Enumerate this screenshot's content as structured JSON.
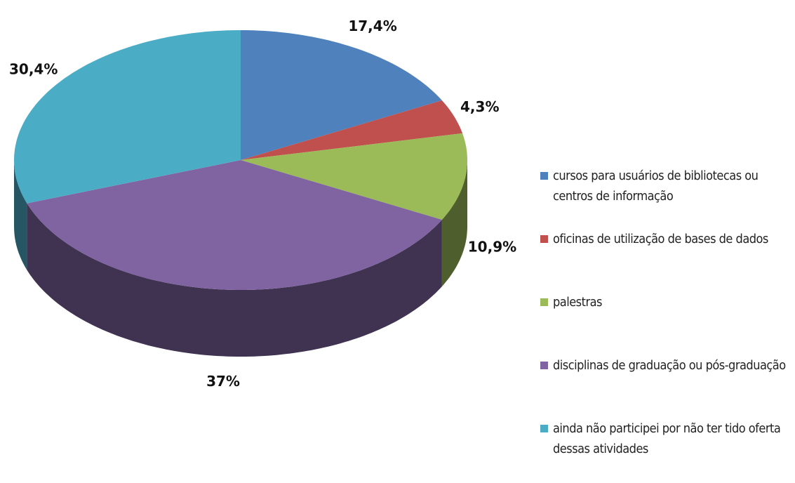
{
  "chart_data": {
    "type": "pie",
    "categories": [
      "cursos para usuários de bibliotecas ou centros de informação",
      "oficinas de utilização  de bases de dados",
      "palestras",
      "disciplinas de graduação ou pós-graduação",
      "ainda não participei por não ter tido oferta dessas atividades"
    ],
    "values": [
      17.4,
      4.3,
      10.9,
      37,
      30.4
    ],
    "value_labels": [
      "17,4%",
      "4,3%",
      "10,9%",
      "37%",
      "30,4%"
    ],
    "colors": [
      "#4f81bd",
      "#c0504d",
      "#9bbb59",
      "#8064a2",
      "#4bacc6"
    ],
    "legend": "right"
  }
}
